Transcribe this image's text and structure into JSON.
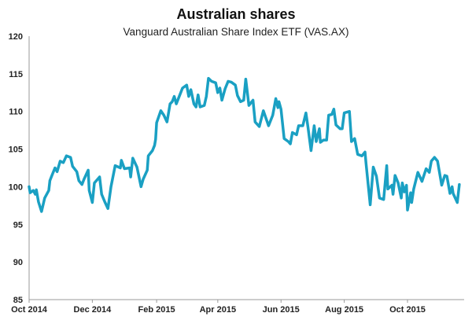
{
  "chart_data": {
    "type": "line",
    "title": "Australian shares",
    "subtitle": "Vanguard Australian Share Index ETF (VAS.AX)",
    "xlabel": "",
    "ylabel": "",
    "ylim": [
      85,
      120
    ],
    "xlim": [
      "2014-10-01",
      "2015-11-25"
    ],
    "y_ticks": [
      "85",
      "90",
      "95",
      "100",
      "105",
      "110",
      "115",
      "120"
    ],
    "x_ticks": [
      {
        "label": "Oct 2014",
        "date": "2014-10-01"
      },
      {
        "label": "Dec 2014",
        "date": "2014-12-01"
      },
      {
        "label": "Feb 2015",
        "date": "2015-02-01"
      },
      {
        "label": "Apr 2015",
        "date": "2015-04-01"
      },
      {
        "label": "Jun 2015",
        "date": "2015-06-01"
      },
      {
        "label": "Aug 2015",
        "date": "2015-08-01"
      },
      {
        "label": "Oct 2015",
        "date": "2015-10-01"
      }
    ],
    "grid": false,
    "legend": "none",
    "line_color": "#1aa0c3",
    "axis_color": "#999999",
    "series": [
      {
        "points": [
          [
            "2014-10-01",
            100
          ],
          [
            "2014-10-02",
            99.2
          ],
          [
            "2014-10-05",
            99.5
          ],
          [
            "2014-10-07",
            99
          ],
          [
            "2014-10-08",
            99.6
          ],
          [
            "2014-10-10",
            98
          ],
          [
            "2014-10-13",
            96.7
          ],
          [
            "2014-10-16",
            98.5
          ],
          [
            "2014-10-20",
            99.5
          ],
          [
            "2014-10-21",
            100.8
          ],
          [
            "2014-10-23",
            101.5
          ],
          [
            "2014-10-26",
            102.5
          ],
          [
            "2014-10-28",
            102
          ],
          [
            "2014-10-31",
            103.4
          ],
          [
            "2014-11-03",
            103.2
          ],
          [
            "2014-11-06",
            104.1
          ],
          [
            "2014-11-10",
            103.9
          ],
          [
            "2014-11-12",
            102.7
          ],
          [
            "2014-11-16",
            102
          ],
          [
            "2014-11-18",
            100.8
          ],
          [
            "2014-11-21",
            100.3
          ],
          [
            "2014-11-23",
            101
          ],
          [
            "2014-11-27",
            102.2
          ],
          [
            "2014-11-28",
            99.5
          ],
          [
            "2014-12-01",
            97.9
          ],
          [
            "2014-12-03",
            100.5
          ],
          [
            "2014-12-08",
            101.3
          ],
          [
            "2014-12-10",
            99
          ],
          [
            "2014-12-13",
            98
          ],
          [
            "2014-12-16",
            97.1
          ],
          [
            "2014-12-19",
            100
          ],
          [
            "2014-12-23",
            102.8
          ],
          [
            "2014-12-28",
            102.5
          ],
          [
            "2014-12-29",
            103.5
          ],
          [
            "2015-01-01",
            102.4
          ],
          [
            "2015-01-06",
            102.5
          ],
          [
            "2015-01-07",
            101.3
          ],
          [
            "2015-01-09",
            103.8
          ],
          [
            "2015-01-13",
            102.6
          ],
          [
            "2015-01-17",
            100
          ],
          [
            "2015-01-19",
            101
          ],
          [
            "2015-01-23",
            102.2
          ],
          [
            "2015-01-24",
            104.1
          ],
          [
            "2015-01-28",
            104.8
          ],
          [
            "2015-01-30",
            105.5
          ],
          [
            "2015-01-31",
            106.3
          ],
          [
            "2015-02-01",
            108.5
          ],
          [
            "2015-02-05",
            110.1
          ],
          [
            "2015-02-08",
            109.5
          ],
          [
            "2015-02-11",
            108.6
          ],
          [
            "2015-02-14",
            111
          ],
          [
            "2015-02-16",
            111.3
          ],
          [
            "2015-02-18",
            112
          ],
          [
            "2015-02-20",
            111
          ],
          [
            "2015-02-26",
            113.1
          ],
          [
            "2015-03-02",
            113.5
          ],
          [
            "2015-03-04",
            112
          ],
          [
            "2015-03-06",
            112.9
          ],
          [
            "2015-03-09",
            111
          ],
          [
            "2015-03-11",
            110.6
          ],
          [
            "2015-03-13",
            112.2
          ],
          [
            "2015-03-15",
            110.6
          ],
          [
            "2015-03-19",
            110.8
          ],
          [
            "2015-03-21",
            112
          ],
          [
            "2015-03-23",
            114.4
          ],
          [
            "2015-03-26",
            114
          ],
          [
            "2015-03-30",
            113.8
          ],
          [
            "2015-04-01",
            112.5
          ],
          [
            "2015-04-03",
            113.1
          ],
          [
            "2015-04-05",
            111.5
          ],
          [
            "2015-04-08",
            113
          ],
          [
            "2015-04-11",
            114
          ],
          [
            "2015-04-14",
            113.9
          ],
          [
            "2015-04-18",
            113.5
          ],
          [
            "2015-04-20",
            112.1
          ],
          [
            "2015-04-23",
            111.3
          ],
          [
            "2015-04-26",
            111.5
          ],
          [
            "2015-04-28",
            114.3
          ],
          [
            "2015-05-01",
            110.8
          ],
          [
            "2015-05-05",
            111.5
          ],
          [
            "2015-05-07",
            108.6
          ],
          [
            "2015-05-11",
            108
          ],
          [
            "2015-05-15",
            110.1
          ],
          [
            "2015-05-20",
            108.1
          ],
          [
            "2015-05-24",
            109.5
          ],
          [
            "2015-05-27",
            111.7
          ],
          [
            "2015-05-29",
            110.5
          ],
          [
            "2015-05-30",
            111.3
          ],
          [
            "2015-06-01",
            110.3
          ],
          [
            "2015-06-04",
            106.4
          ],
          [
            "2015-06-08",
            106
          ],
          [
            "2015-06-10",
            105.7
          ],
          [
            "2015-06-12",
            107.2
          ],
          [
            "2015-06-16",
            106.9
          ],
          [
            "2015-06-18",
            108.1
          ],
          [
            "2015-06-22",
            108.1
          ],
          [
            "2015-06-25",
            109.8
          ],
          [
            "2015-06-27",
            107.9
          ],
          [
            "2015-06-30",
            104.8
          ],
          [
            "2015-07-03",
            108.1
          ],
          [
            "2015-07-05",
            106
          ],
          [
            "2015-07-08",
            107.7
          ],
          [
            "2015-07-09",
            105.9
          ],
          [
            "2015-07-12",
            106.2
          ],
          [
            "2015-07-15",
            106.2
          ],
          [
            "2015-07-17",
            109.5
          ],
          [
            "2015-07-20",
            109.6
          ],
          [
            "2015-07-22",
            110.3
          ],
          [
            "2015-07-24",
            108.2
          ],
          [
            "2015-07-28",
            107.7
          ],
          [
            "2015-07-30",
            107.7
          ],
          [
            "2015-08-01",
            109.8
          ],
          [
            "2015-08-06",
            110
          ],
          [
            "2015-08-08",
            106
          ],
          [
            "2015-08-11",
            106.4
          ],
          [
            "2015-08-14",
            104.3
          ],
          [
            "2015-08-18",
            104.1
          ],
          [
            "2015-08-21",
            104.6
          ],
          [
            "2015-08-22",
            103.1
          ],
          [
            "2015-08-26",
            97.6
          ],
          [
            "2015-08-29",
            102.6
          ],
          [
            "2015-09-01",
            101.4
          ],
          [
            "2015-09-04",
            98.5
          ],
          [
            "2015-09-08",
            98.3
          ],
          [
            "2015-09-11",
            102.8
          ],
          [
            "2015-09-12",
            99.7
          ],
          [
            "2015-09-16",
            100.2
          ],
          [
            "2015-09-17",
            99
          ],
          [
            "2015-09-19",
            101.5
          ],
          [
            "2015-09-22",
            100.5
          ],
          [
            "2015-09-25",
            98.5
          ],
          [
            "2015-09-26",
            100.5
          ],
          [
            "2015-09-28",
            99.3
          ],
          [
            "2015-09-30",
            100.2
          ],
          [
            "2015-10-01",
            96.9
          ],
          [
            "2015-10-04",
            99.2
          ],
          [
            "2015-10-05",
            97.9
          ],
          [
            "2015-10-07",
            99.7
          ],
          [
            "2015-10-11",
            101.9
          ],
          [
            "2015-10-15",
            100.7
          ],
          [
            "2015-10-19",
            102.4
          ],
          [
            "2015-10-22",
            101.9
          ],
          [
            "2015-10-24",
            103.4
          ],
          [
            "2015-10-27",
            103.9
          ],
          [
            "2015-10-30",
            103.4
          ],
          [
            "2015-11-03",
            100.2
          ],
          [
            "2015-11-06",
            101.5
          ],
          [
            "2015-11-08",
            101.4
          ],
          [
            "2015-11-11",
            99.1
          ],
          [
            "2015-11-13",
            100
          ],
          [
            "2015-11-14",
            99.1
          ],
          [
            "2015-11-18",
            97.9
          ],
          [
            "2015-11-20",
            100.3
          ]
        ]
      }
    ]
  }
}
